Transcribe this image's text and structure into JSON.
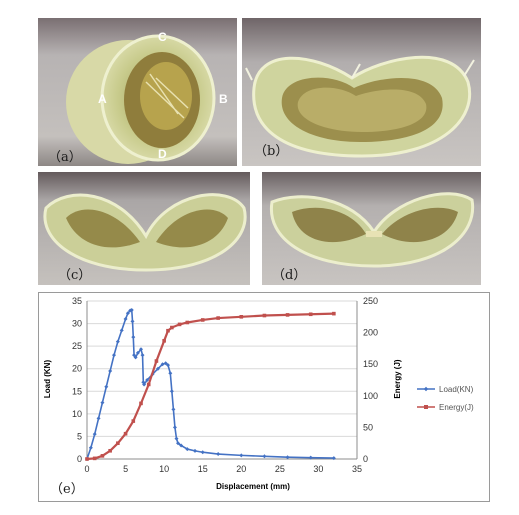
{
  "panels": {
    "a": {
      "label": "（a）",
      "points": [
        "A",
        "B",
        "C",
        "D"
      ]
    },
    "b": {
      "label": "（b）"
    },
    "c": {
      "label": "（c）"
    },
    "d": {
      "label": "（d）"
    },
    "e": {
      "label": "（e）"
    }
  },
  "colors": {
    "load": "#4472c4",
    "energy": "#c0504d",
    "grid": "#d9d9d9",
    "photo_bg": "#c9c6c4",
    "tube": "#c9cfa0"
  },
  "chart_data": {
    "type": "line",
    "xlabel": "Displacement (mm)",
    "ylabel_left": "Load (KN)",
    "ylabel_right": "Energy (J)",
    "xlim": [
      0,
      35
    ],
    "ylim_left": [
      0,
      35
    ],
    "ylim_right": [
      0,
      250
    ],
    "x_ticks": [
      "0",
      "5",
      "10",
      "15",
      "20",
      "25",
      "30",
      "35"
    ],
    "y_left_ticks": [
      "0",
      "5",
      "10",
      "15",
      "20",
      "25",
      "30",
      "35"
    ],
    "y_right_ticks": [
      "0",
      "50",
      "100",
      "150",
      "200",
      "250"
    ],
    "grid": "horizontal",
    "legend_position": "right",
    "series": [
      {
        "name": "Load(KN)",
        "axis": "left",
        "marker": "diamond",
        "x": [
          0,
          0.5,
          1,
          1.5,
          2,
          2.5,
          3,
          3.5,
          4,
          4.5,
          5,
          5.3,
          5.6,
          5.8,
          5.9,
          6.0,
          6.1,
          6.3,
          6.6,
          7.0,
          7.2,
          7.3,
          7.4,
          7.8,
          8.5,
          9.2,
          9.8,
          10.2,
          10.5,
          10.8,
          11.0,
          11.2,
          11.4,
          11.6,
          11.8,
          12.2,
          13,
          14,
          15,
          17,
          20,
          23,
          26,
          29,
          32
        ],
        "y": [
          0,
          2.5,
          5.5,
          9,
          12.5,
          16,
          19.5,
          23,
          26,
          28.5,
          31,
          32.3,
          32.9,
          33.0,
          30.5,
          27,
          23,
          22.5,
          23.5,
          24.3,
          23,
          17,
          16.5,
          17.5,
          18.8,
          20,
          21,
          21.2,
          20.8,
          19,
          15,
          11,
          7,
          4.5,
          3.5,
          3.0,
          2.2,
          1.8,
          1.5,
          1.1,
          0.8,
          0.6,
          0.4,
          0.3,
          0.2
        ]
      },
      {
        "name": "Energy(J)",
        "axis": "right",
        "marker": "square",
        "x": [
          0,
          1,
          2,
          3,
          4,
          5,
          6,
          7,
          8,
          9,
          10,
          10.5,
          11,
          12,
          13,
          15,
          17,
          20,
          23,
          26,
          29,
          32
        ],
        "y": [
          0,
          1,
          5,
          13,
          25,
          40,
          60,
          88,
          118,
          155,
          187,
          203,
          208,
          213,
          216,
          220,
          223,
          225,
          227,
          228,
          229,
          230
        ]
      }
    ]
  }
}
